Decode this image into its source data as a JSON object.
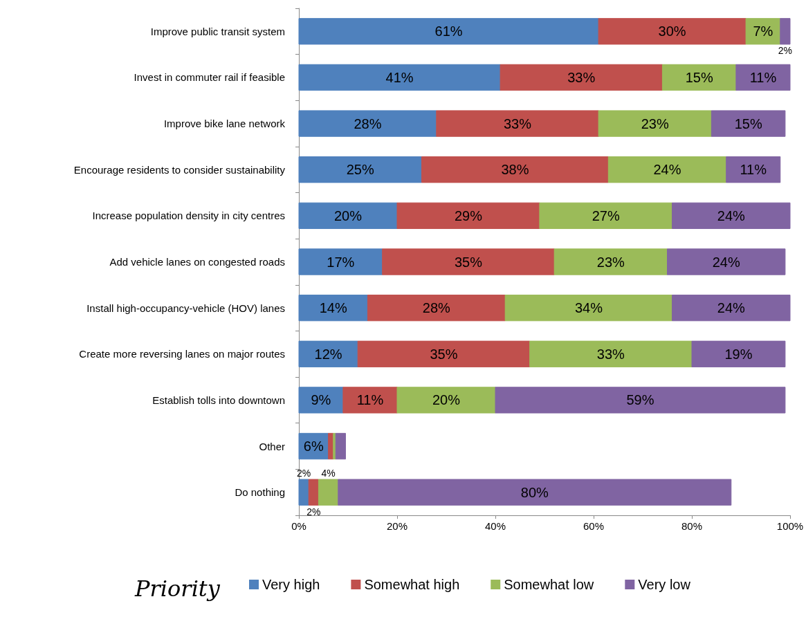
{
  "chart_data": {
    "type": "bar",
    "orientation": "horizontal",
    "stacked": true,
    "legend_title": "Priority",
    "legend": "bottom",
    "grid": false,
    "categories": [
      "Improve public transit system",
      "Invest in commuter rail if feasible",
      "Improve bike lane network",
      "Encourage residents to consider sustainability",
      "Increase population density in city centres",
      "Add vehicle lanes on congested roads",
      "Install high-occupancy-vehicle (HOV) lanes",
      "Create more reversing lanes on major routes",
      "Establish tolls into downtown",
      "Other",
      "Do nothing"
    ],
    "xlim": [
      0,
      100
    ],
    "xticks": [
      {
        "value": 0,
        "label": "0%"
      },
      {
        "value": 20,
        "label": "20%"
      },
      {
        "value": 40,
        "label": "40%"
      },
      {
        "value": 60,
        "label": "60%"
      },
      {
        "value": 80,
        "label": "80%"
      },
      {
        "value": 100,
        "label": "100%"
      }
    ],
    "series": [
      {
        "name": "Very high",
        "color": "#4f81bd",
        "values": [
          61,
          41,
          28,
          25,
          20,
          17,
          14,
          12,
          9,
          6,
          2
        ],
        "value_labels": [
          "61%",
          "41%",
          "28%",
          "25%",
          "20%",
          "17%",
          "14%",
          "12%",
          "9%",
          "6%",
          "2%"
        ]
      },
      {
        "name": "Somewhat high",
        "color": "#c0504d",
        "values": [
          30,
          33,
          33,
          38,
          29,
          35,
          28,
          35,
          11,
          1,
          2
        ],
        "value_labels": [
          "30%",
          "33%",
          "33%",
          "38%",
          "29%",
          "35%",
          "28%",
          "35%",
          "11%",
          null,
          "2%"
        ]
      },
      {
        "name": "Somewhat low",
        "color": "#9bbb59",
        "values": [
          7,
          15,
          23,
          24,
          27,
          23,
          34,
          33,
          20,
          0.5,
          4
        ],
        "value_labels": [
          "7%",
          "15%",
          "23%",
          "24%",
          "27%",
          "23%",
          "34%",
          "33%",
          "20%",
          null,
          "4%"
        ]
      },
      {
        "name": "Very low",
        "color": "#8064a2",
        "values": [
          2,
          11,
          15,
          11,
          24,
          24,
          24,
          19,
          59,
          2,
          80
        ],
        "value_labels": [
          "2%",
          "11%",
          "15%",
          "11%",
          "24%",
          "24%",
          "24%",
          "19%",
          "59%",
          null,
          "80%"
        ]
      }
    ]
  }
}
